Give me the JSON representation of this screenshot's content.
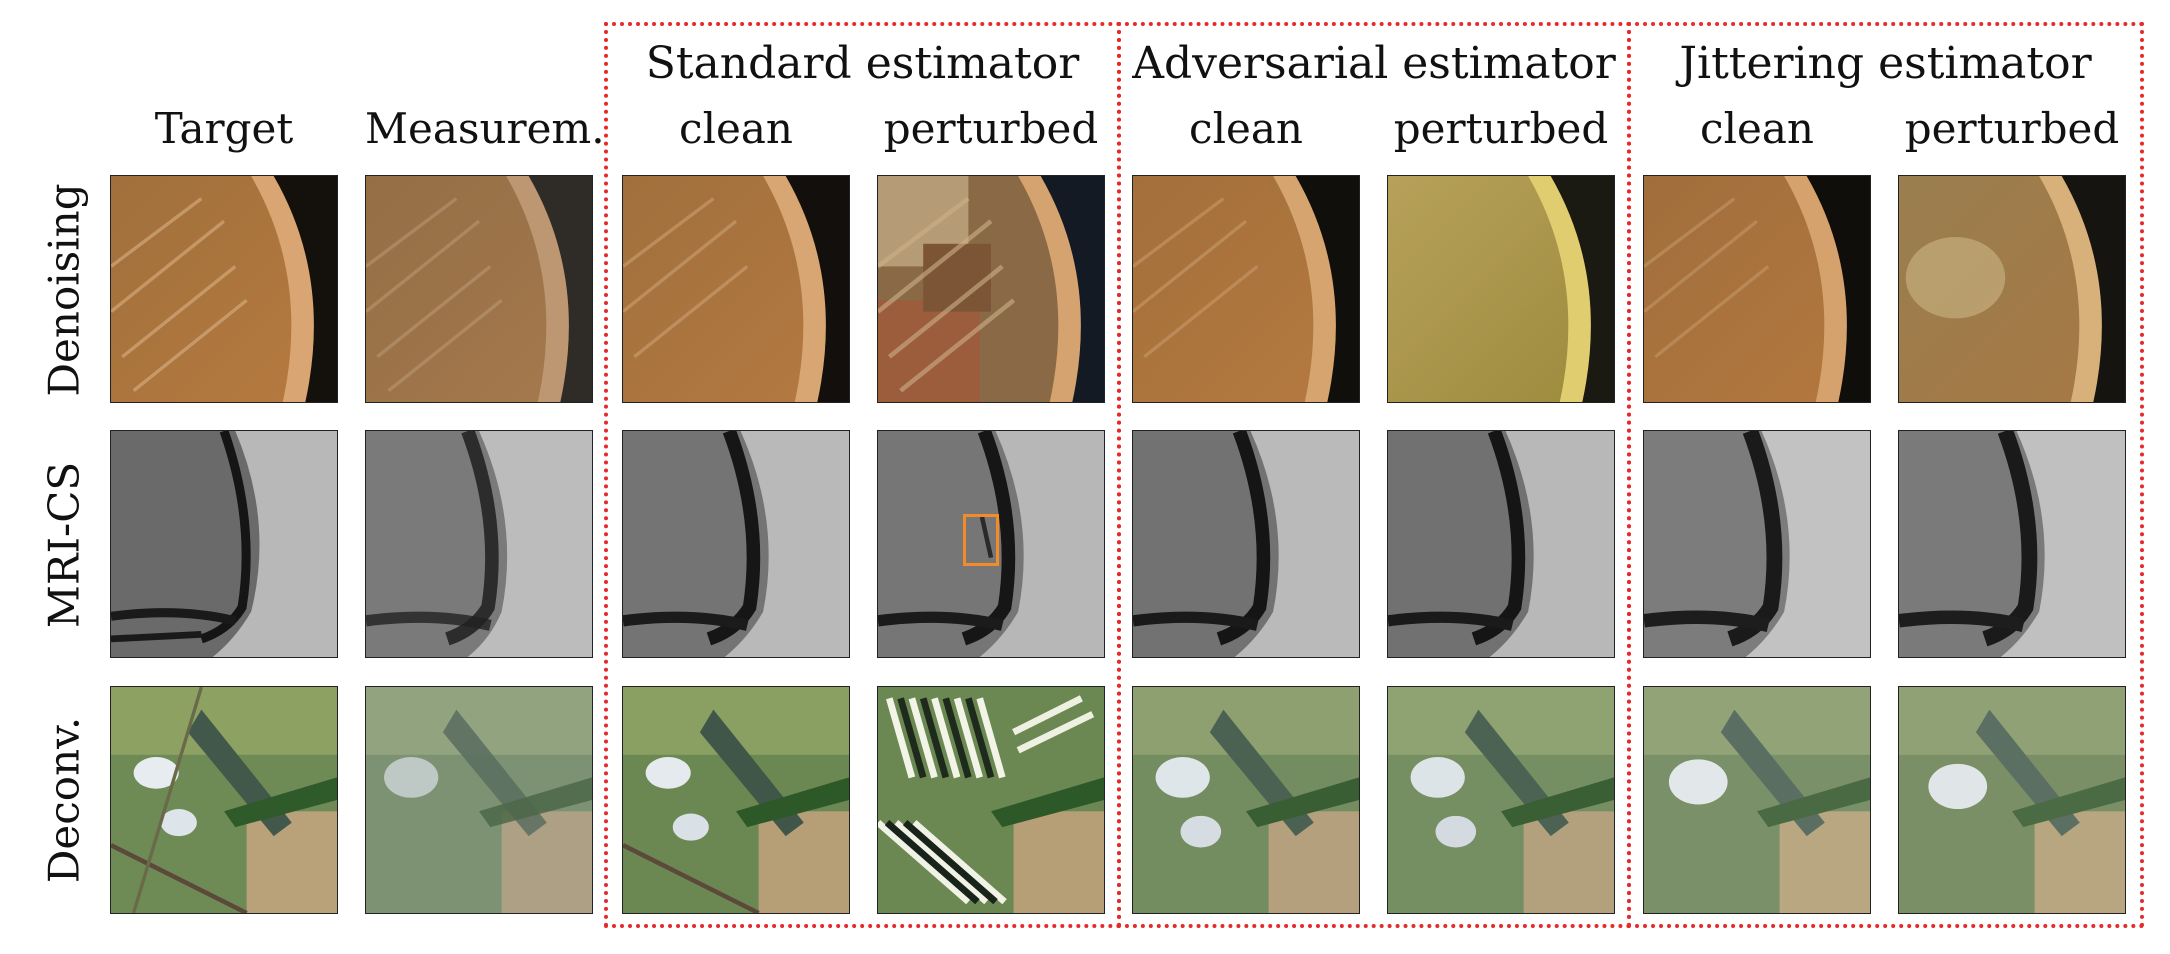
{
  "groups": [
    {
      "title": "Standard estimator",
      "clean_label": "clean",
      "perturbed_label": "perturbed"
    },
    {
      "title": "Adversarial estimator",
      "clean_label": "clean",
      "perturbed_label": "perturbed"
    },
    {
      "title": "Jittering estimator",
      "clean_label": "clean",
      "perturbed_label": "perturbed"
    }
  ],
  "columns": {
    "target": "Target",
    "measurement": "Measurem."
  },
  "rows": [
    {
      "label": "Denoising",
      "palette": "tan"
    },
    {
      "label": "MRI-CS",
      "palette": "gray"
    },
    {
      "label": "Deconv.",
      "palette": "leaf"
    }
  ],
  "colors": {
    "group_border": "#e52a2a",
    "highlight_box": "#f28c28"
  }
}
